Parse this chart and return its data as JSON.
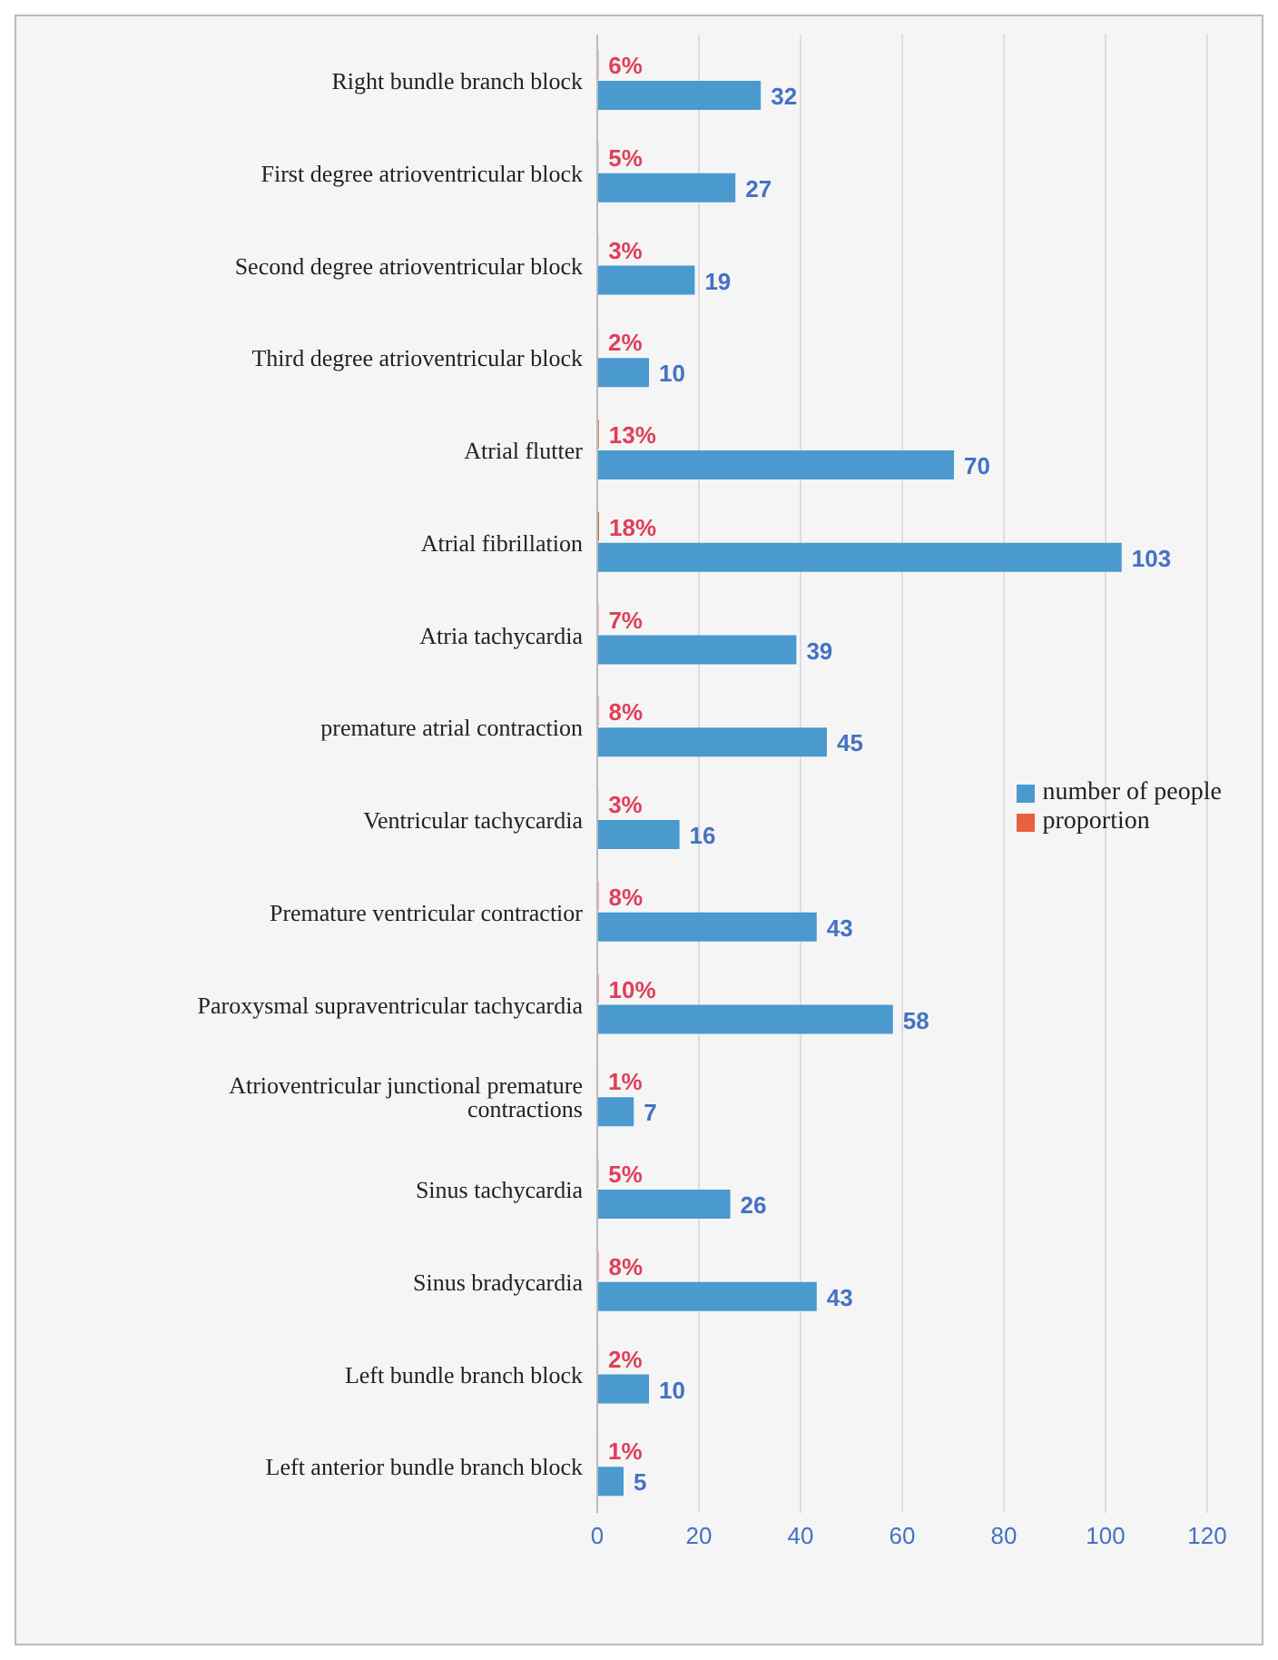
{
  "chart_data": {
    "type": "bar",
    "orientation": "horizontal",
    "categories": [
      "Right bundle branch block",
      "First degree atrioventricular block",
      "Second degree atrioventricular block",
      "Third degree atrioventricular block",
      "Atrial flutter",
      "Atrial fibrillation",
      "Atria tachycardia",
      "premature atrial contraction",
      "Ventricular tachycardia",
      "Premature ventricular contractior",
      "Paroxysmal supraventricular tachycardia",
      "Atrioventricular junctional premature contractions",
      "Sinus tachycardia",
      "Sinus bradycardia",
      "Left bundle branch block",
      "Left anterior bundle branch block"
    ],
    "series": [
      {
        "name": "proportion",
        "color": "#e8603c",
        "values": [
          0.06,
          0.05,
          0.03,
          0.02,
          0.13,
          0.18,
          0.07,
          0.08,
          0.03,
          0.08,
          0.1,
          0.01,
          0.05,
          0.08,
          0.02,
          0.01
        ],
        "value_labels": [
          "6%",
          "5%",
          "3%",
          "2%",
          "13%",
          "18%",
          "7%",
          "8%",
          "3%",
          "8%",
          "10%",
          "1%",
          "5%",
          "8%",
          "2%",
          "1%"
        ]
      },
      {
        "name": "number of people",
        "color": "#4a9ad0",
        "values": [
          32,
          27,
          19,
          10,
          70,
          103,
          39,
          45,
          16,
          43,
          58,
          7,
          26,
          43,
          10,
          5
        ],
        "value_labels": [
          "32",
          "27",
          "19",
          "10",
          "70",
          "103",
          "39",
          "45",
          "16",
          "43",
          "58",
          "7",
          "26",
          "43",
          "10",
          "5"
        ]
      }
    ],
    "xlim": [
      0,
      120
    ],
    "xticks": [
      0,
      20,
      40,
      60,
      80,
      100,
      120
    ],
    "grid": "x",
    "legend": "right"
  }
}
